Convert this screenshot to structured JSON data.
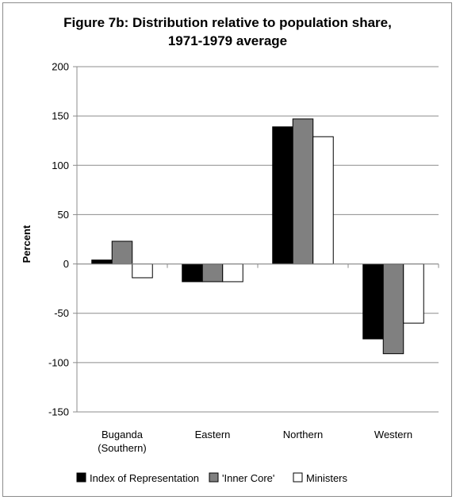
{
  "chart_data": {
    "type": "bar",
    "title_lines": [
      "Figure 7b: Distribution relative to population share,",
      "1971-1979 average"
    ],
    "ylabel": "Percent",
    "xlabel": "",
    "ylim": [
      -150,
      200
    ],
    "yticks": [
      -150,
      -100,
      -50,
      0,
      50,
      100,
      150,
      200
    ],
    "grid": true,
    "legend_position": "bottom",
    "categories": [
      [
        "Buganda",
        "(Southern)"
      ],
      [
        "Eastern"
      ],
      [
        "Northern"
      ],
      [
        "Western"
      ]
    ],
    "series": [
      {
        "name": "Index of Representation",
        "color": "#000000",
        "values": [
          4,
          -18,
          139,
          -76
        ]
      },
      {
        "name": "'Inner Core'",
        "color": "#808080",
        "values": [
          23,
          -18,
          147,
          -91
        ]
      },
      {
        "name": "Ministers",
        "color": "#ffffff",
        "values": [
          -14,
          -18,
          129,
          -60
        ]
      }
    ]
  }
}
